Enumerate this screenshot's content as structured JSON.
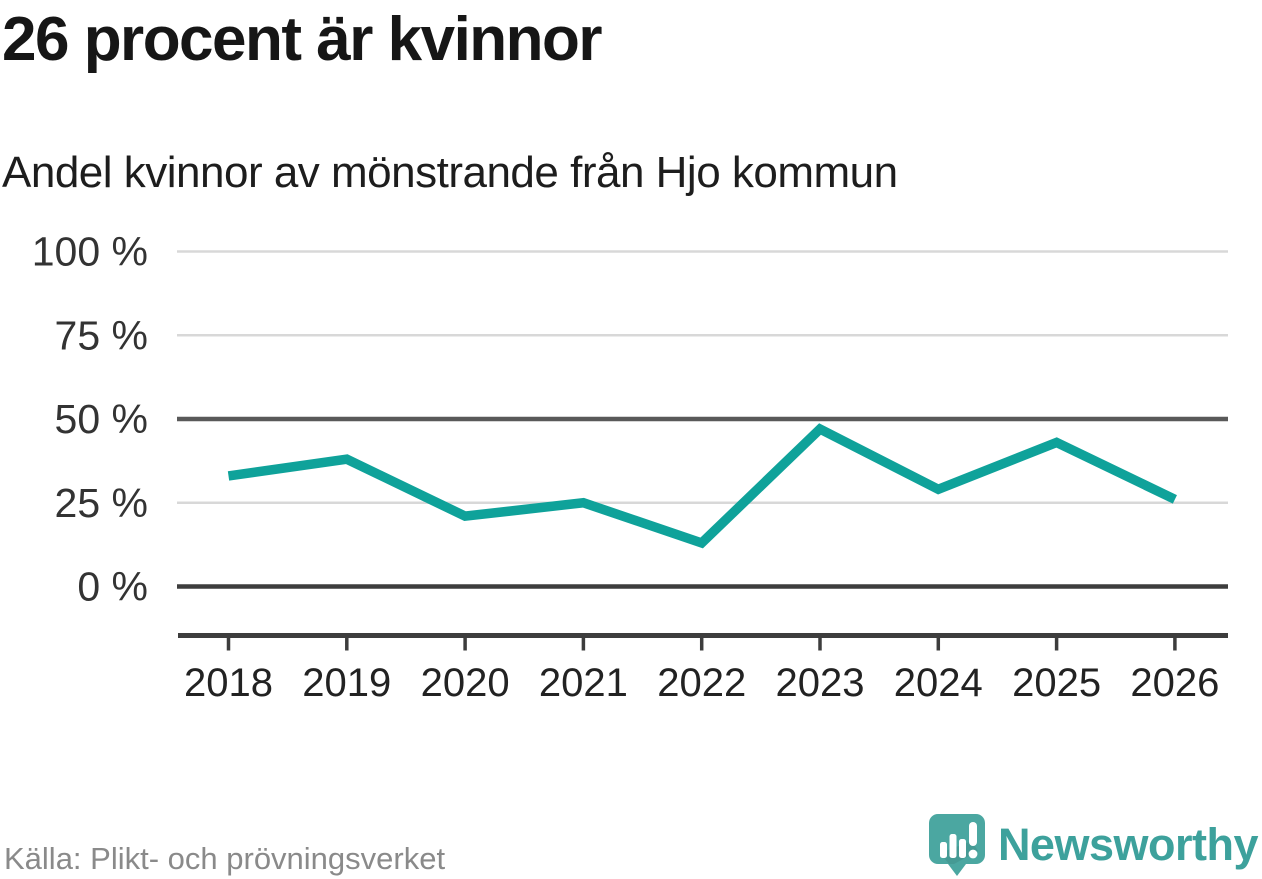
{
  "title": "26 procent är kvinnor",
  "subtitle": "Andel kvinnor av mönstrande från Hjo kommun",
  "source": "Källa: Plikt- och prövningsverket",
  "brand": "Newsworthy",
  "colors": {
    "line": "#0fa29a",
    "grid_light": "#d8d8d8",
    "grid_mid": "#595959",
    "axis": "#3d3d3d",
    "tick_label": "#333333",
    "year_label": "#222222",
    "logo_teal": "#4ba7a1",
    "logo_text": "#3da19c"
  },
  "chart_data": {
    "type": "line",
    "title": "26 procent är kvinnor",
    "subtitle": "Andel kvinnor av mönstrande från Hjo kommun",
    "x": [
      2018,
      2019,
      2020,
      2021,
      2022,
      2023,
      2024,
      2025,
      2026
    ],
    "series": [
      {
        "name": "Andel kvinnor av mönstrande",
        "values": [
          33,
          38,
          21,
          25,
          13,
          47,
          29,
          43,
          26
        ]
      }
    ],
    "unit": "%",
    "ylim": [
      0,
      100
    ],
    "yticks": [
      0,
      25,
      50,
      75,
      100
    ],
    "ytick_suffix": " %",
    "grid": "horizontal",
    "emphasized_gridlines": [
      50,
      0
    ],
    "legend": "none",
    "source": "Källa: Plikt- och prövningsverket"
  }
}
